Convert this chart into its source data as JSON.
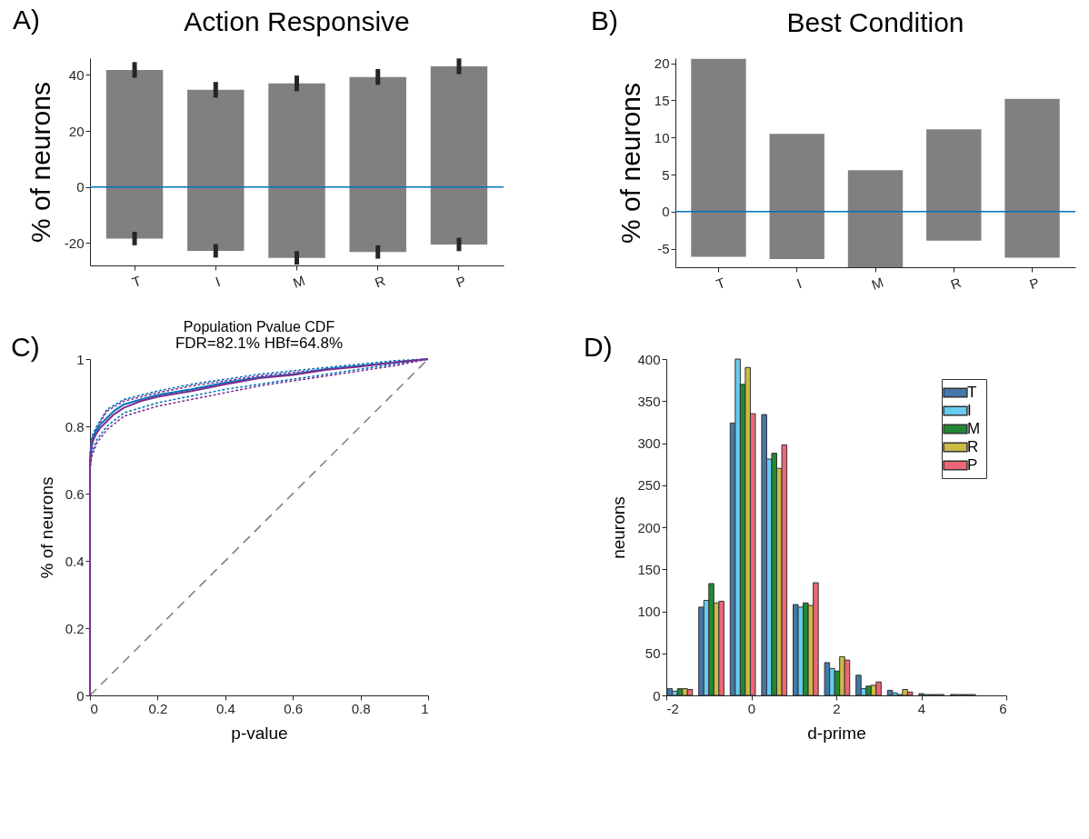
{
  "chart_data": [
    {
      "type": "bar",
      "title": "Action Responsive",
      "ylabel": "% of neurons",
      "categories": [
        "T",
        "I",
        "M",
        "R",
        "P"
      ],
      "stacked": true,
      "series": [
        {
          "color": "#808080",
          "values": [
            41.8,
            34.7,
            37,
            39.3,
            43.1
          ],
          "errors": [
            2.8,
            2.8,
            2.8,
            2.8,
            2.8
          ]
        },
        {
          "color": "#808080",
          "values": [
            -18.4,
            -22.8,
            -25.3,
            -23.2,
            -20.5
          ],
          "errors": [
            2.4,
            2.4,
            2.4,
            2.4,
            2.4
          ]
        }
      ],
      "ylim": [
        -28,
        46
      ],
      "yticks": [
        -20,
        0,
        20,
        40
      ],
      "ref_lines": [
        {
          "axis": "y",
          "value": 0,
          "color": "#0072bd"
        }
      ],
      "annotations": [
        "A)"
      ]
    },
    {
      "type": "bar",
      "title": "Best Condition",
      "ylabel": "% of neurons",
      "categories": [
        "T",
        "I",
        "M",
        "R",
        "P"
      ],
      "stacked": true,
      "series": [
        {
          "color": "#808080",
          "values": [
            20.6,
            10.5,
            5.6,
            11.1,
            15.2
          ]
        },
        {
          "color": "#808080",
          "values": [
            -6.1,
            -6.4,
            -7.5,
            -3.9,
            -6.2
          ]
        }
      ],
      "ylim": [
        -7.5,
        20.7
      ],
      "yticks": [
        -5,
        0,
        5,
        10,
        15,
        20
      ],
      "ref_lines": [
        {
          "axis": "y",
          "value": 0,
          "color": "#0072bd"
        }
      ],
      "annotations": [
        "B)"
      ]
    },
    {
      "type": "line",
      "title": "Population Pvalue CDF",
      "subtitle": "FDR=82.1% HBf=64.8%",
      "xlabel": "p-value",
      "ylabel": "% of neurons",
      "series": [
        {
          "color": "#808080",
          "line_style": "dashed",
          "x": [
            0,
            1
          ],
          "values": [
            0,
            1
          ]
        },
        {
          "color": "#0072bd",
          "line_style": "dotted",
          "x": [
            0,
            0.005,
            0.02,
            0.05,
            0.1,
            0.2,
            0.3,
            0.4,
            0.5,
            0.6,
            0.7,
            0.8,
            0.9,
            1
          ],
          "values": [
            0.72,
            0.77,
            0.8,
            0.85,
            0.88,
            0.905,
            0.925,
            0.94,
            0.955,
            0.965,
            0.975,
            0.985,
            0.995,
            1
          ]
        },
        {
          "color": "#0072bd",
          "line_style": "dotted",
          "x": [
            0,
            0.005,
            0.02,
            0.05,
            0.1,
            0.2,
            0.3,
            0.4,
            0.5,
            0.6,
            0.7,
            0.8,
            0.9,
            1
          ],
          "values": [
            0.68,
            0.72,
            0.76,
            0.8,
            0.84,
            0.87,
            0.89,
            0.91,
            0.925,
            0.94,
            0.955,
            0.97,
            0.985,
            1
          ]
        },
        {
          "color": "#7e2f8e",
          "line_style": "dotted",
          "x": [
            0,
            0.005,
            0.02,
            0.05,
            0.1,
            0.2,
            0.3,
            0.4,
            0.5,
            0.6,
            0.7,
            0.8,
            0.9,
            1
          ],
          "values": [
            0.71,
            0.76,
            0.795,
            0.845,
            0.875,
            0.9,
            0.92,
            0.935,
            0.95,
            0.96,
            0.97,
            0.98,
            0.99,
            1
          ]
        },
        {
          "color": "#7e2f8e",
          "line_style": "dotted",
          "x": [
            0,
            0.005,
            0.02,
            0.05,
            0.1,
            0.2,
            0.3,
            0.4,
            0.5,
            0.6,
            0.7,
            0.8,
            0.9,
            1
          ],
          "values": [
            0.67,
            0.71,
            0.75,
            0.79,
            0.83,
            0.86,
            0.88,
            0.9,
            0.92,
            0.935,
            0.95,
            0.965,
            0.98,
            1
          ]
        },
        {
          "color": "#0072bd",
          "line_style": "solid",
          "x": [
            0,
            0,
            0.005,
            0.01,
            0.02,
            0.03,
            0.05,
            0.07,
            0.1,
            0.15,
            0.2,
            0.3,
            0.4,
            0.5,
            0.6,
            0.7,
            0.8,
            0.9,
            1
          ],
          "values": [
            0,
            0.7,
            0.75,
            0.77,
            0.79,
            0.805,
            0.825,
            0.845,
            0.865,
            0.88,
            0.893,
            0.91,
            0.93,
            0.945,
            0.955,
            0.97,
            0.98,
            0.99,
            1
          ]
        },
        {
          "color": "#7e2f8e",
          "line_style": "solid",
          "x": [
            0,
            0,
            0.005,
            0.01,
            0.02,
            0.03,
            0.05,
            0.07,
            0.1,
            0.15,
            0.2,
            0.3,
            0.4,
            0.5,
            0.6,
            0.7,
            0.8,
            0.9,
            1
          ],
          "values": [
            0,
            0.68,
            0.74,
            0.76,
            0.78,
            0.795,
            0.815,
            0.835,
            0.855,
            0.875,
            0.888,
            0.905,
            0.925,
            0.943,
            0.953,
            0.968,
            0.978,
            0.99,
            1
          ]
        }
      ],
      "xlim": [
        0,
        1
      ],
      "xticks": [
        0,
        0.2,
        0.4,
        0.6,
        0.8,
        1
      ],
      "ylim": [
        0,
        1
      ],
      "yticks": [
        0,
        0.2,
        0.4,
        0.6,
        0.8,
        1
      ],
      "annotations": [
        "C)"
      ]
    },
    {
      "type": "bar",
      "xlabel": "d-prime",
      "ylabel": "neurons",
      "x": [
        -1.68,
        -0.94,
        -0.2,
        0.54,
        1.28,
        2.02,
        2.76,
        3.5,
        4.24,
        4.98
      ],
      "series": [
        {
          "name": "T",
          "color": "#4477aa",
          "values": [
            8,
            105,
            324,
            334,
            108,
            39,
            24,
            6,
            2,
            1
          ]
        },
        {
          "name": "I",
          "color": "#66ccee",
          "values": [
            5,
            113,
            400,
            281,
            105,
            32,
            8,
            3,
            1,
            1
          ]
        },
        {
          "name": "M",
          "color": "#228833",
          "values": [
            8,
            133,
            370,
            288,
            110,
            29,
            11,
            1,
            1,
            1
          ]
        },
        {
          "name": "R",
          "color": "#ccbb44",
          "values": [
            8,
            110,
            390,
            270,
            107,
            46,
            12,
            7,
            1,
            1
          ]
        },
        {
          "name": "P",
          "color": "#ee6677",
          "values": [
            7,
            112,
            335,
            298,
            134,
            42,
            16,
            4,
            1,
            1
          ]
        }
      ],
      "xlim": [
        -2,
        6
      ],
      "xticks": [
        -2,
        0,
        2,
        4,
        6
      ],
      "ylim": [
        0,
        400
      ],
      "yticks": [
        0,
        50,
        100,
        150,
        200,
        250,
        300,
        350,
        400
      ],
      "legend": "top right",
      "annotations": [
        "D)"
      ]
    }
  ]
}
